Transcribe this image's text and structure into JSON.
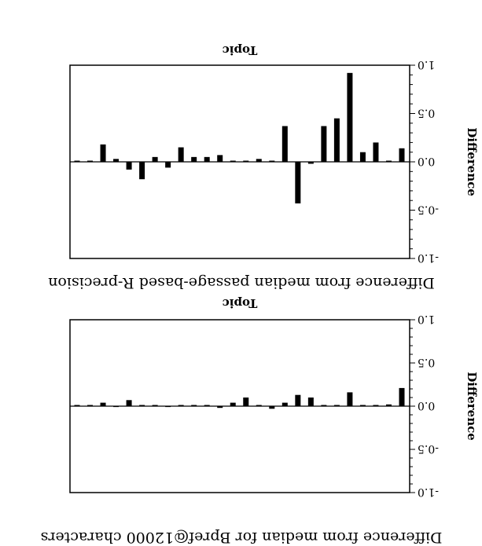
{
  "chart_data": [
    {
      "type": "bar",
      "title": "Difference from median passage-based R-precision",
      "xlabel": "Topic",
      "ylabel": "Difference",
      "ylim": [
        -1.0,
        1.0
      ],
      "yticks": [
        "-1.0",
        "-0.5",
        "0.0",
        "0.5",
        "1.0"
      ],
      "grid": false,
      "values": [
        0.21,
        0.02,
        0.0,
        0.0,
        0.16,
        0.01,
        0.0,
        0.1,
        0.13,
        0.04,
        -0.03,
        0.0,
        0.1,
        0.04,
        -0.02,
        0.0,
        0.0,
        0.0,
        -0.01,
        0.0,
        0.0,
        0.07,
        -0.01,
        0.04,
        0.0,
        0.01
      ]
    },
    {
      "type": "bar",
      "title": "Difference from median for Bpref@12000 characters",
      "xlabel": "Topic",
      "ylabel": "Difference",
      "ylim": [
        -1.0,
        1.0
      ],
      "yticks": [
        "-1.0",
        "-0.5",
        "0.0",
        "0.5",
        "1.0"
      ],
      "grid": false,
      "values": [
        0.14,
        0.0,
        0.2,
        0.1,
        0.92,
        0.45,
        0.37,
        -0.02,
        -0.43,
        0.37,
        0.0,
        0.03,
        0.0,
        0.0,
        0.07,
        0.05,
        0.05,
        0.15,
        -0.06,
        0.05,
        -0.18,
        -0.08,
        0.03,
        0.18,
        0.0,
        0.0
      ]
    }
  ]
}
